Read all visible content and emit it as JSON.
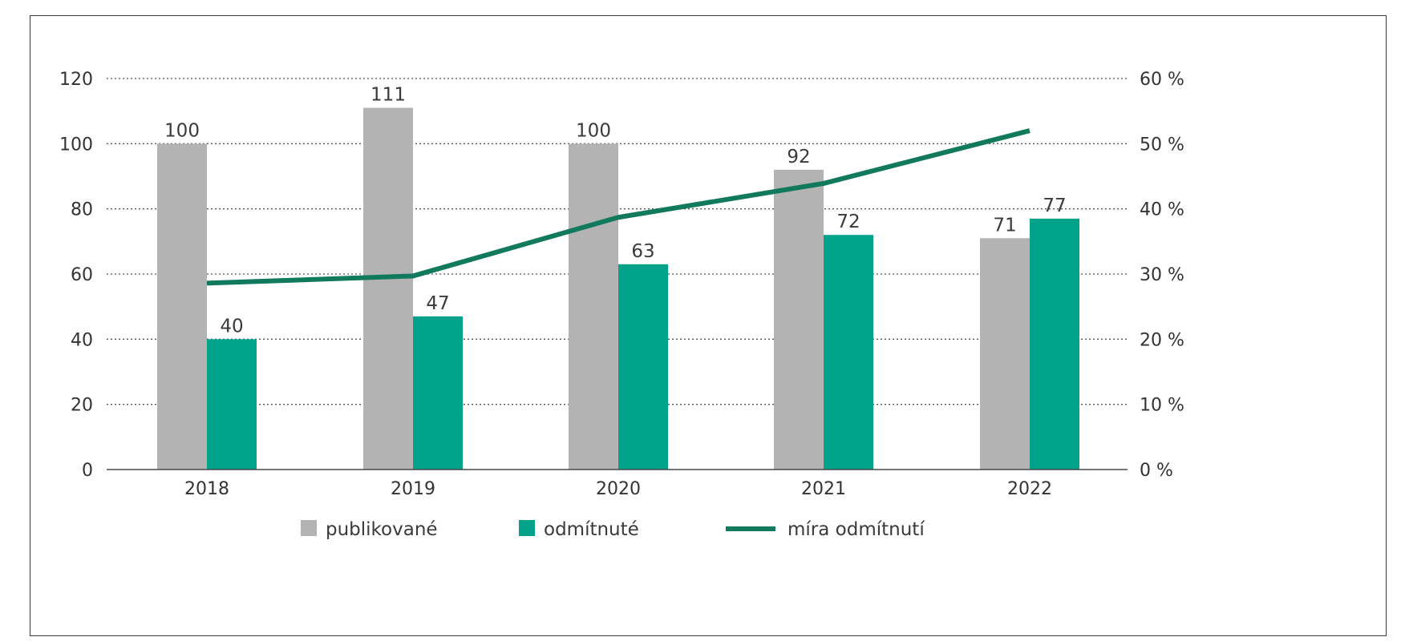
{
  "chart_data": {
    "type": "bar",
    "categories": [
      "2018",
      "2019",
      "2020",
      "2021",
      "2022"
    ],
    "series": [
      {
        "name": "publikované",
        "type": "bar",
        "axis": "left",
        "color": "#b3b3b3",
        "values": [
          100,
          111,
          100,
          92,
          71
        ]
      },
      {
        "name": "odmítnuté",
        "type": "bar",
        "axis": "left",
        "color": "#00a38a",
        "values": [
          40,
          47,
          63,
          72,
          77
        ]
      },
      {
        "name": "míra odmítnutí",
        "type": "line",
        "axis": "right",
        "color": "#117a5c",
        "values": [
          28.6,
          29.7,
          38.7,
          43.9,
          52.0
        ]
      }
    ],
    "data_labels": {
      "publikované": [
        "100",
        "111",
        "100",
        "92",
        "71"
      ],
      "odmítnuté": [
        "40",
        "47",
        "63",
        "72",
        "77"
      ]
    },
    "y_left": {
      "min": 0,
      "max": 120,
      "ticks": [
        "0",
        "20",
        "40",
        "60",
        "80",
        "100",
        "120"
      ]
    },
    "y_right": {
      "min": 0,
      "max": 60,
      "unit": "%",
      "ticks": [
        "0 %",
        "10 %",
        "20 %",
        "30 %",
        "40 %",
        "50 %",
        "60 %"
      ]
    },
    "grid": true,
    "legend_position": "bottom",
    "title": "",
    "xlabel": "",
    "ylabel": ""
  }
}
